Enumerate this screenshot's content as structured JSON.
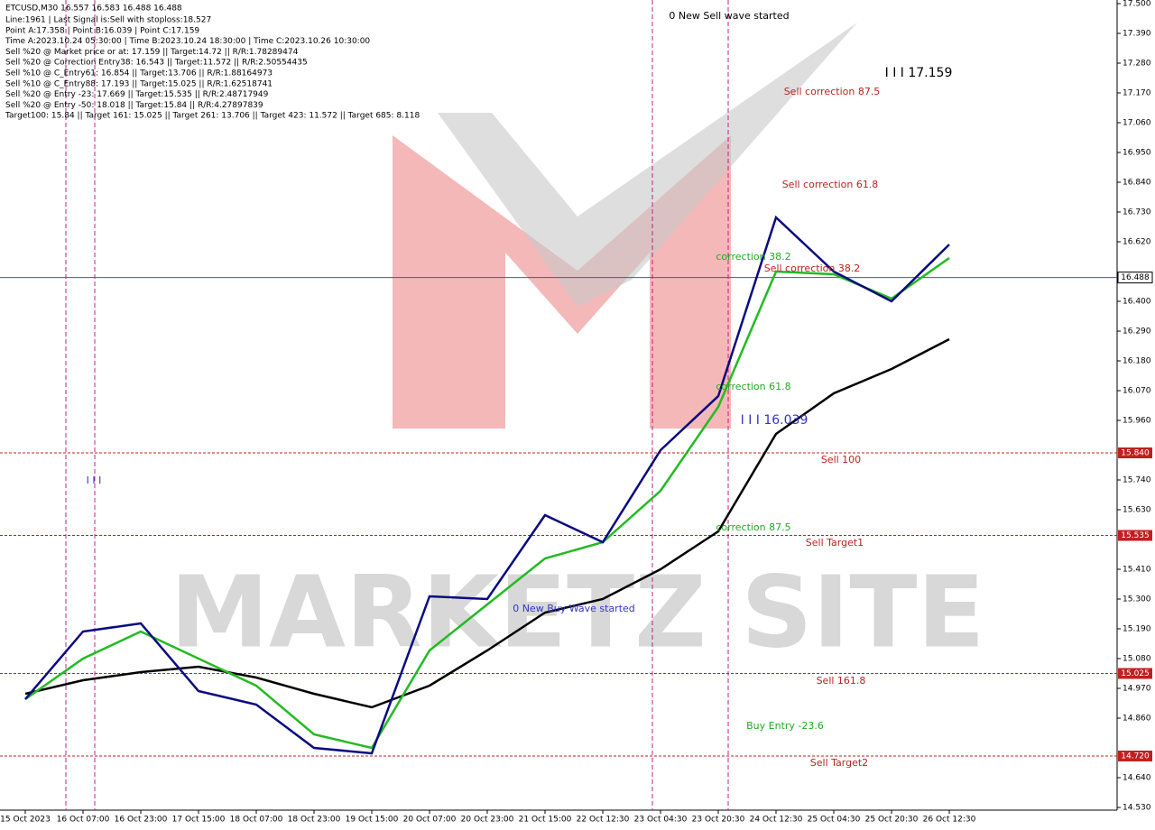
{
  "chart_data": {
    "type": "line",
    "title": "ETCUSD,M30  16.557 16.583 16.488 16.488",
    "info": [
      "Line:1961 | Last Signal is:Sell with stoploss:18.527",
      "Point A:17.358 | Point B:16.039 | Point C:17.159",
      "Time A:2023.10.24 05:30:00 | Time B:2023.10.24 18:30:00 | Time C:2023.10.26 10:30:00",
      "Sell %20 @ Market price or at: 17.159 || Target:14.72 || R/R:1.78289474",
      "Sell %20 @ Correction Entry38: 16.543 || Target:11.572 || R/R:2.50554435",
      "Sell %10 @ C_Entry61: 16.854 || Target:13.706 || R/R:1.88164973",
      "Sell %10 @ C_Entry88: 17.193 || Target:15.025 || R/R:1.62518741",
      "Sell %20 @ Entry -23: 17.669 || Target:15.535 || R/R:2.48717949",
      "Sell %20 @ Entry -50: 18.018 || Target:15.84 || R/R:4.27897839",
      "Target100: 15.84 || Target 161: 15.025 || Target 261: 13.706 || Target 423: 11.572 || Target 685: 8.118"
    ],
    "watermark": "MARKETZ SITE",
    "categories": [
      "15 Oct 2023",
      "16 Oct 07:00",
      "16 Oct 23:00",
      "17 Oct 15:00",
      "18 Oct 07:00",
      "18 Oct 23:00",
      "19 Oct 15:00",
      "20 Oct 07:00",
      "20 Oct 23:00",
      "21 Oct 15:00",
      "22 Oct 12:30",
      "23 Oct 04:30",
      "23 Oct 20:30",
      "24 Oct 12:30",
      "25 Oct 04:30",
      "25 Oct 20:30",
      "26 Oct 12:30"
    ],
    "series": [
      {
        "color": "#000000",
        "values": [
          14.95,
          15.0,
          15.03,
          15.05,
          15.01,
          14.95,
          14.9,
          14.98,
          15.11,
          15.25,
          15.3,
          15.41,
          15.55,
          15.91,
          16.06,
          16.15,
          16.26
        ]
      },
      {
        "color": "#22bb22",
        "values": [
          14.93,
          15.08,
          15.18,
          15.08,
          14.98,
          14.8,
          14.75,
          15.11,
          15.28,
          15.45,
          15.51,
          15.7,
          16.01,
          16.51,
          16.5,
          16.41,
          16.56
        ]
      },
      {
        "color": "#0a0a80",
        "values": [
          14.93,
          15.18,
          15.21,
          14.96,
          14.91,
          14.75,
          14.73,
          15.31,
          15.3,
          15.61,
          15.51,
          15.85,
          16.05,
          16.71,
          16.51,
          16.4,
          16.61
        ]
      }
    ],
    "levels": [
      {
        "value": 16.488,
        "label": "16.488",
        "color": "#1f5fd0"
      },
      {
        "value": 15.84,
        "label": "15.840",
        "color": "#c02020"
      },
      {
        "value": 15.535,
        "label": "15.535",
        "color": "#c02020"
      },
      {
        "value": 15.025,
        "label": "15.025",
        "color": "#c02020"
      },
      {
        "value": 14.72,
        "label": "14.720",
        "color": "#c02020"
      }
    ],
    "annotations": [
      "0 New Sell wave started",
      "I I I 17.159",
      "Sell correction 87.5",
      "Sell correction 61.8",
      "correction 38.2",
      "Sell correction 38.2",
      "correction 61.8",
      "I I I 16.039",
      "Sell 100",
      "correction 87.5",
      "Sell Target1",
      "0 New Buy Wave started",
      "Sell 161.8",
      "Buy Entry -23.6",
      "Sell Target2",
      "I I I"
    ],
    "ylim": [
      14.53,
      17.5
    ],
    "yticks": [
      {
        "value": 17.5,
        "label": "17.500"
      },
      {
        "value": 17.39,
        "label": "17.390"
      },
      {
        "value": 17.28,
        "label": "17.280"
      },
      {
        "value": 17.17,
        "label": "17.170"
      },
      {
        "value": 17.06,
        "label": "17.060"
      },
      {
        "value": 16.95,
        "label": "16.950"
      },
      {
        "value": 16.84,
        "label": "16.840"
      },
      {
        "value": 16.73,
        "label": "16.730"
      },
      {
        "value": 16.62,
        "label": "16.620"
      },
      {
        "value": 16.4,
        "label": "16.400"
      },
      {
        "value": 16.29,
        "label": "16.290"
      },
      {
        "value": 16.18,
        "label": "16.180"
      },
      {
        "value": 16.07,
        "label": "16.070"
      },
      {
        "value": 15.96,
        "label": "15.960"
      },
      {
        "value": 15.74,
        "label": "15.740"
      },
      {
        "value": 15.63,
        "label": "15.630"
      },
      {
        "value": 15.41,
        "label": "15.410"
      },
      {
        "value": 15.3,
        "label": "15.300"
      },
      {
        "value": 15.19,
        "label": "15.190"
      },
      {
        "value": 15.08,
        "label": "15.080"
      },
      {
        "value": 14.97,
        "label": "14.970"
      },
      {
        "value": 14.86,
        "label": "14.860"
      },
      {
        "value": 14.64,
        "label": "14.640"
      },
      {
        "value": 14.53,
        "label": "14.530"
      }
    ]
  }
}
